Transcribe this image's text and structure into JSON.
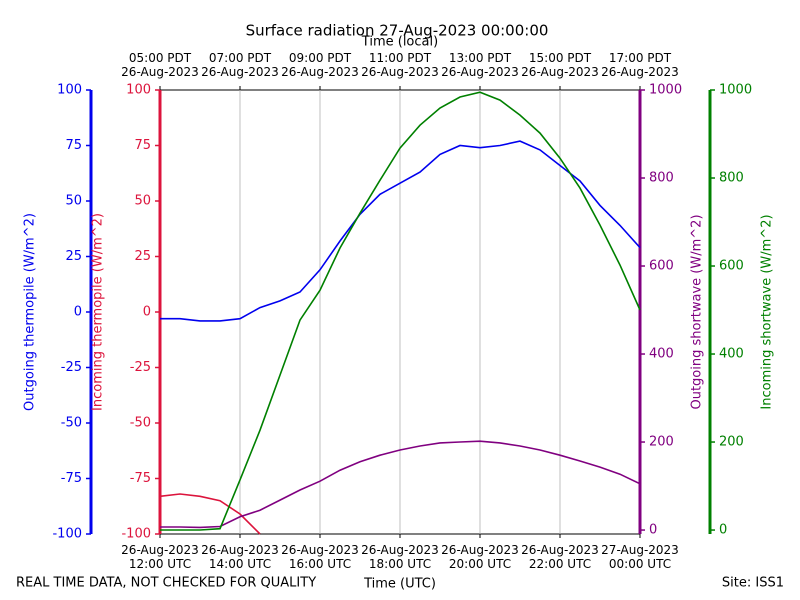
{
  "chart_data": {
    "type": "line",
    "title": "Surface radiation 27-Aug-2023 00:00:00",
    "xlabel": "Time (UTC)",
    "x2label": "Time (local)",
    "footer_left": "REAL TIME DATA, NOT CHECKED FOR QUALITY",
    "footer_right": "Site: ISS1",
    "grid": true,
    "x": [
      "2023-08-26 12:00",
      "2023-08-26 12:30",
      "2023-08-26 13:00",
      "2023-08-26 13:30",
      "2023-08-26 14:00",
      "2023-08-26 14:30",
      "2023-08-26 15:00",
      "2023-08-26 15:30",
      "2023-08-26 16:00",
      "2023-08-26 16:30",
      "2023-08-26 17:00",
      "2023-08-26 17:30",
      "2023-08-26 18:00",
      "2023-08-26 18:30",
      "2023-08-26 19:00",
      "2023-08-26 19:30",
      "2023-08-26 20:00",
      "2023-08-26 20:30",
      "2023-08-26 21:00",
      "2023-08-26 21:30",
      "2023-08-26 22:00",
      "2023-08-26 22:30",
      "2023-08-26 23:00",
      "2023-08-26 23:30",
      "2023-08-27 00:00"
    ],
    "xlim": [
      "2023-08-26 12:00",
      "2023-08-27 00:00"
    ],
    "xticks": [
      {
        "value": "2023-08-26 12:00",
        "label": "26-Aug-2023\n12:00 UTC"
      },
      {
        "value": "2023-08-26 14:00",
        "label": "26-Aug-2023\n14:00 UTC"
      },
      {
        "value": "2023-08-26 16:00",
        "label": "26-Aug-2023\n16:00 UTC"
      },
      {
        "value": "2023-08-26 18:00",
        "label": "26-Aug-2023\n18:00 UTC"
      },
      {
        "value": "2023-08-26 20:00",
        "label": "26-Aug-2023\n20:00 UTC"
      },
      {
        "value": "2023-08-26 22:00",
        "label": "26-Aug-2023\n22:00 UTC"
      },
      {
        "value": "2023-08-27 00:00",
        "label": "27-Aug-2023\n00:00 UTC"
      }
    ],
    "x2ticks": [
      {
        "value": "2023-08-26 12:00",
        "label": "05:00 PDT\n26-Aug-2023"
      },
      {
        "value": "2023-08-26 14:00",
        "label": "07:00 PDT\n26-Aug-2023"
      },
      {
        "value": "2023-08-26 16:00",
        "label": "09:00 PDT\n26-Aug-2023"
      },
      {
        "value": "2023-08-26 18:00",
        "label": "11:00 PDT\n26-Aug-2023"
      },
      {
        "value": "2023-08-26 20:00",
        "label": "13:00 PDT\n26-Aug-2023"
      },
      {
        "value": "2023-08-26 22:00",
        "label": "15:00 PDT\n26-Aug-2023"
      },
      {
        "value": "2023-08-27 00:00",
        "label": "17:00 PDT\n26-Aug-2023"
      }
    ],
    "axes": [
      {
        "label": "Outgoing thermopile (W/m^2)",
        "color": "#0000ee",
        "lim": [
          -100,
          100
        ],
        "ticks": [
          -100,
          -75,
          -50,
          -25,
          0,
          25,
          50,
          75,
          100
        ]
      },
      {
        "label": "Incoming thermopile (W/m^2)",
        "color": "#dc143c",
        "lim": [
          -100,
          100
        ],
        "ticks": [
          -100,
          -75,
          -50,
          -25,
          0,
          25,
          50,
          75,
          100
        ]
      },
      {
        "label": "Outgoing shortwave (W/m^2)",
        "color": "#800080",
        "lim": [
          -9,
          1000
        ],
        "ticks": [
          0,
          200,
          400,
          600,
          800,
          1000
        ]
      },
      {
        "label": "Incoming shortwave (W/m^2)",
        "color": "#008000",
        "lim": [
          -9,
          1000
        ],
        "ticks": [
          0,
          200,
          400,
          600,
          800,
          1000
        ]
      }
    ],
    "series": [
      {
        "name": "Outgoing thermopile",
        "axis": 0,
        "color": "#0000ee",
        "values": [
          -3,
          -3,
          -4,
          -4,
          -3,
          2,
          5,
          9,
          19,
          32,
          44,
          53,
          58,
          63,
          71,
          75,
          74,
          75,
          77,
          73,
          66,
          59,
          48,
          39,
          29
        ]
      },
      {
        "name": "Incoming thermopile",
        "axis": 1,
        "color": "#dc143c",
        "values": [
          -83,
          -82,
          -83,
          -85,
          -91,
          -100,
          null,
          null,
          null,
          null,
          null,
          null,
          null,
          null,
          null,
          null,
          null,
          null,
          null,
          null,
          null,
          null,
          null,
          null,
          null
        ]
      },
      {
        "name": "Outgoing shortwave",
        "axis": 2,
        "color": "#800080",
        "values": [
          7,
          7,
          6,
          8,
          30,
          45,
          68,
          91,
          111,
          136,
          155,
          170,
          182,
          191,
          198,
          200,
          202,
          198,
          191,
          182,
          170,
          157,
          143,
          127,
          105
        ]
      },
      {
        "name": "Incoming shortwave",
        "axis": 3,
        "color": "#008000",
        "values": [
          0,
          0,
          0,
          3,
          114,
          227,
          352,
          477,
          545,
          641,
          720,
          795,
          868,
          920,
          959,
          984,
          995,
          977,
          943,
          902,
          845,
          777,
          693,
          602,
          500
        ]
      }
    ]
  }
}
